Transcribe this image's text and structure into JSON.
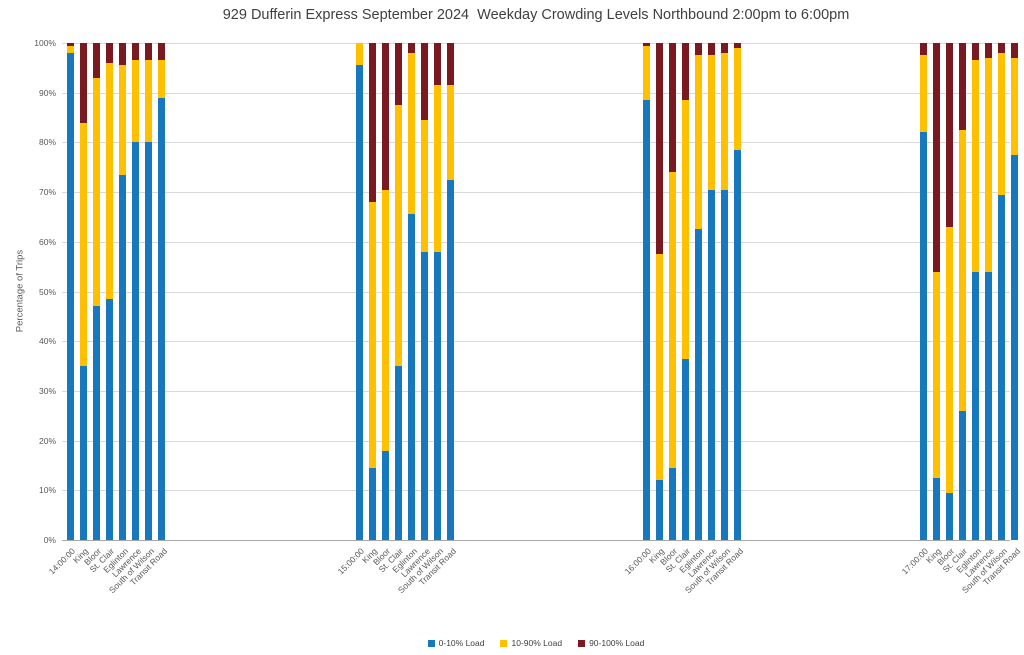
{
  "title": "929 Dufferin Express September 2024  Weekday Crowding Levels Northbound 2:00pm to 6:00pm",
  "y_axis_label": "Percentage of Trips",
  "y_ticks": [
    "100%",
    "90%",
    "80%",
    "70%",
    "60%",
    "50%",
    "40%",
    "30%",
    "20%",
    "10%",
    "0%"
  ],
  "legend": [
    {
      "label": "0-10% Load",
      "color": "#1878BE"
    },
    {
      "label": "10-90% Load",
      "color": "#FFC000"
    },
    {
      "label": "90-100% Load",
      "color": "#7A1A20"
    }
  ],
  "chart_data": {
    "type": "bar",
    "stacked": true,
    "title": "929 Dufferin Express September 2024  Weekday Crowding Levels Northbound 2:00pm to 6:00pm",
    "xlabel": "",
    "ylabel": "Percentage of Trips",
    "ylim": [
      0,
      100
    ],
    "grid": true,
    "legend_position": "bottom",
    "series_names": [
      "0-10% Load",
      "10-90% Load",
      "90-100% Load"
    ],
    "series_colors": [
      "#1878BE",
      "#FFC000",
      "#7A1A20"
    ],
    "value_order_note": "each bar = [pct 0-10% load, pct 10-90% load, pct 90-100% load]",
    "groups": [
      {
        "group_label": "14:00:00",
        "categories": [
          "14:00:00",
          "King",
          "Bloor",
          "St. Clair",
          "Eglinton",
          "Lawrence",
          "South of Wilson",
          "Transit Road"
        ],
        "values": [
          [
            98,
            1.5,
            0.5
          ],
          [
            35,
            49,
            16
          ],
          [
            47,
            46,
            7
          ],
          [
            48.5,
            47.5,
            4
          ],
          [
            73.5,
            22,
            4.5
          ],
          [
            80,
            16.5,
            3.5
          ],
          [
            80,
            16.5,
            3.5
          ],
          [
            89,
            7.5,
            3.5
          ]
        ]
      },
      {
        "group_label": "15:00:00",
        "categories": [
          "15:00:00",
          "King",
          "Bloor",
          "St. Clair",
          "Eglinton",
          "Lawrence",
          "South of Wilson",
          "Transit Road"
        ],
        "values": [
          [
            95.5,
            4.5,
            0
          ],
          [
            14.5,
            53.5,
            32
          ],
          [
            18,
            52.5,
            29.5
          ],
          [
            35,
            52.5,
            12.5
          ],
          [
            65.5,
            32.5,
            2
          ],
          [
            58,
            26.5,
            15.5
          ],
          [
            58,
            33.5,
            8.5
          ],
          [
            72.5,
            19,
            8.5
          ]
        ]
      },
      {
        "group_label": "16:00:00",
        "categories": [
          "16:00:00",
          "King",
          "Bloor",
          "St. Clair",
          "Eglinton",
          "Lawrence",
          "South of Wilson",
          "Transit Road"
        ],
        "values": [
          [
            88.5,
            11,
            0.5
          ],
          [
            12,
            45.5,
            42.5
          ],
          [
            14.5,
            59.5,
            26
          ],
          [
            36.5,
            52,
            11.5
          ],
          [
            62.5,
            35,
            2.5
          ],
          [
            70.5,
            27,
            2.5
          ],
          [
            70.5,
            27.5,
            2
          ],
          [
            78.5,
            20.5,
            1
          ]
        ]
      },
      {
        "group_label": "17:00:00",
        "categories": [
          "17:00:00",
          "King",
          "Bloor",
          "St. Clair",
          "Eglinton",
          "Lawrence",
          "South of Wilson",
          "Transit Road"
        ],
        "values": [
          [
            82,
            15.5,
            2.5
          ],
          [
            12.5,
            41.5,
            46
          ],
          [
            9.5,
            53.5,
            37
          ],
          [
            26,
            56.5,
            17.5
          ],
          [
            54,
            42.5,
            3.5
          ],
          [
            54,
            43,
            3
          ],
          [
            69.5,
            28.5,
            2
          ],
          [
            77.5,
            19.5,
            3
          ]
        ]
      }
    ]
  }
}
